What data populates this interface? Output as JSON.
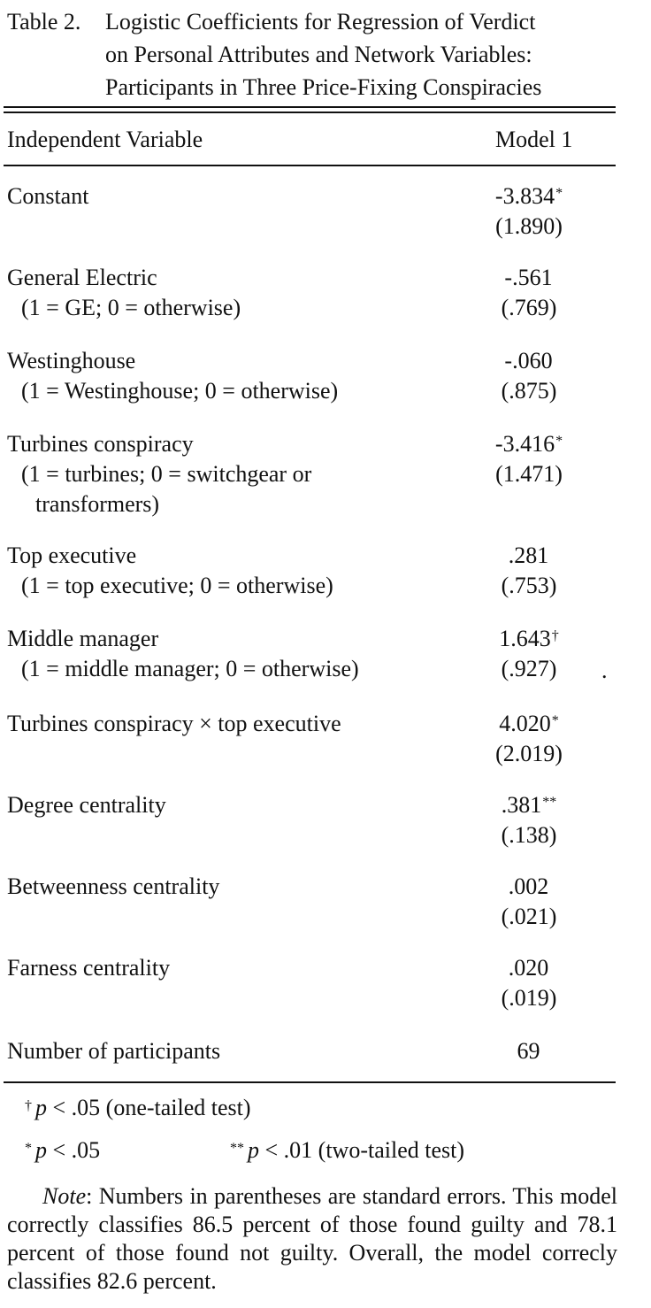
{
  "table": {
    "label": "Table 2.",
    "title_lines": [
      "Logistic Coefficients for Regression of Verdict",
      "on Personal Attributes and Network Variables:",
      "Participants in Three Price-Fixing Conspiracies"
    ],
    "columns": [
      "Independent Variable",
      "Model 1"
    ],
    "rows": [
      {
        "name": "Constant",
        "sub": [],
        "coef": "-3.834",
        "coef_mark": "*",
        "se": "(1.890)"
      },
      {
        "name": "General Electric",
        "sub": [
          "(1 = GE; 0 = otherwise)"
        ],
        "coef": "-.561",
        "coef_mark": "",
        "se": "(.769)"
      },
      {
        "name": "Westinghouse",
        "sub": [
          "(1 = Westinghouse; 0 = otherwise)"
        ],
        "coef": "-.060",
        "coef_mark": "",
        "se": "(.875)"
      },
      {
        "name": "Turbines conspiracy",
        "sub": [
          "(1 = turbines; 0 = switchgear or",
          "transformers)"
        ],
        "coef": "-3.416",
        "coef_mark": "*",
        "se": "(1.471)"
      },
      {
        "name": "Top executive",
        "sub": [
          "(1 = top executive; 0 = otherwise)"
        ],
        "coef": ".281",
        "coef_mark": "",
        "se": "(.753)"
      },
      {
        "name": "Middle manager",
        "sub": [
          "(1 = middle manager; 0 = otherwise)"
        ],
        "coef": "1.643",
        "coef_mark": "†",
        "se": "(.927)"
      },
      {
        "name": "Turbines conspiracy × top executive",
        "sub": [],
        "coef": "4.020",
        "coef_mark": "*",
        "se": "(2.019)"
      },
      {
        "name": "Degree centrality",
        "sub": [],
        "coef": ".381",
        "coef_mark": "**",
        "se": "(.138)"
      },
      {
        "name": "Betweenness centrality",
        "sub": [],
        "coef": ".002",
        "coef_mark": "",
        "se": "(.021)"
      },
      {
        "name": "Farness centrality",
        "sub": [],
        "coef": ".020",
        "coef_mark": "",
        "se": "(.019)"
      },
      {
        "name": "Number of participants",
        "sub": [],
        "coef": "69",
        "coef_mark": "",
        "se": ""
      }
    ],
    "footnotes": {
      "dagger_mark": "†",
      "dagger_p": "p",
      "dagger_text": " < .05 (one-tailed test)",
      "star_mark": "*",
      "star_p": "p",
      "star_text": " < .05",
      "dstar_mark": "**",
      "dstar_p": "p",
      "dstar_text": " < .01 (two-tailed test)"
    },
    "note": {
      "label": "Note",
      "text": ": Numbers in parentheses are standard errors. This model correctly classifies 86.5 percent of those found guilty and 78.1 percent of those found not guilty. Overall, the model correcly classifies 82.6 percent."
    },
    "stray_mark": "."
  }
}
